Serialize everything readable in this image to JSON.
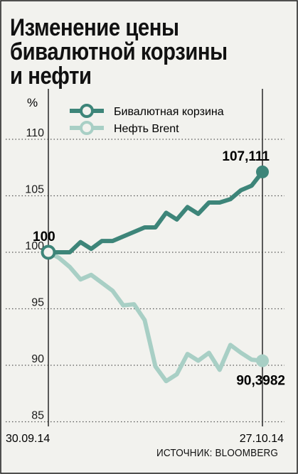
{
  "title_lines": [
    "Изменение цены",
    "бивалютной корзины",
    "и нефти"
  ],
  "unit": "%",
  "source": "ИСТОЧНИК: BLOOMBERG",
  "colors": {
    "basket": "#3d8579",
    "brent": "#a8cfc5",
    "grid": "#555555",
    "background": "#f2f2ee"
  },
  "chart_data": {
    "type": "line",
    "title": "Изменение цены бивалютной корзины и нефти",
    "ylabel": "%",
    "ylim": [
      85,
      112
    ],
    "y_ticks": [
      85,
      90,
      95,
      100,
      105,
      110
    ],
    "x_tick_labels": [
      "30.09.14",
      "27.10.14"
    ],
    "grid": true,
    "legend_position": "top-center",
    "series": [
      {
        "name": "Бивалютная корзина",
        "color": "#3d8579",
        "values": [
          100,
          100,
          100,
          100.9,
          100.3,
          101.0,
          101.0,
          101.4,
          101.8,
          102.2,
          102.2,
          103.5,
          102.9,
          104.0,
          103.4,
          104.4,
          104.4,
          104.7,
          105.5,
          105.9,
          107.111
        ],
        "start_label": "100",
        "end_label": "107,111"
      },
      {
        "name": "Нефть Brent",
        "color": "#a8cfc5",
        "values": [
          100,
          99.5,
          98.7,
          97.6,
          98.0,
          97.3,
          96.6,
          95.3,
          95.4,
          94.0,
          89.9,
          88.6,
          89.2,
          91.0,
          90.4,
          91.1,
          89.6,
          91.8,
          91.1,
          90.5,
          90.3982
        ],
        "end_label": "90,3982"
      }
    ]
  }
}
